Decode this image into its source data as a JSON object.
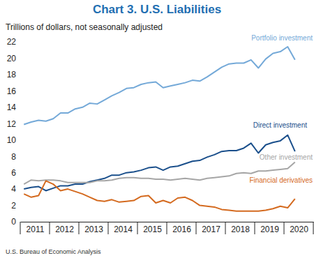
{
  "chart_data": {
    "type": "line",
    "title": "Chart 3. U.S. Liabilities",
    "subtitle": "Trillions of dollars, not seasonally adjusted",
    "source": "U.S. Bureau of Economic Analysis",
    "grid": false,
    "x": [
      2011.125,
      2011.375,
      2011.625,
      2011.875,
      2012.125,
      2012.375,
      2012.625,
      2012.875,
      2013.125,
      2013.375,
      2013.625,
      2013.875,
      2014.125,
      2014.375,
      2014.625,
      2014.875,
      2015.125,
      2015.375,
      2015.625,
      2015.875,
      2016.125,
      2016.375,
      2016.625,
      2016.875,
      2017.125,
      2017.375,
      2017.625,
      2017.875,
      2018.125,
      2018.375,
      2018.625,
      2018.875,
      2019.125,
      2019.375,
      2019.625,
      2019.875,
      2020.125,
      2020.375
    ],
    "xlim": [
      2011,
      2021
    ],
    "xticks": [
      {
        "value": 2011.5,
        "label": "2011"
      },
      {
        "value": 2012.5,
        "label": "2012"
      },
      {
        "value": 2013.5,
        "label": "2013"
      },
      {
        "value": 2014.5,
        "label": "2014"
      },
      {
        "value": 2015.5,
        "label": "2015"
      },
      {
        "value": 2016.5,
        "label": "2016"
      },
      {
        "value": 2017.5,
        "label": "2017"
      },
      {
        "value": 2018.5,
        "label": "2018"
      },
      {
        "value": 2019.5,
        "label": "2019"
      },
      {
        "value": 2020.5,
        "label": "2020"
      }
    ],
    "ylim": [
      0,
      22
    ],
    "yticks": [
      0,
      2,
      4,
      6,
      8,
      10,
      12,
      14,
      16,
      18,
      20,
      22
    ],
    "series": [
      {
        "name": "Portfolio investment",
        "color": "#74a9d8",
        "values": [
          11.9,
          12.2,
          12.4,
          12.3,
          12.6,
          13.3,
          13.3,
          13.8,
          14.0,
          14.5,
          14.4,
          14.9,
          15.4,
          15.8,
          16.3,
          16.4,
          16.8,
          17.0,
          17.1,
          16.4,
          16.6,
          16.8,
          17.0,
          17.3,
          17.2,
          17.7,
          18.3,
          18.9,
          19.3,
          19.4,
          19.4,
          19.8,
          18.8,
          19.9,
          20.6,
          20.8,
          21.4,
          19.8
        ]
      },
      {
        "name": "Direct investment",
        "color": "#1a4f8b",
        "values": [
          4.0,
          4.2,
          4.3,
          3.8,
          4.1,
          4.4,
          4.4,
          4.6,
          4.6,
          4.9,
          5.1,
          5.3,
          5.7,
          5.7,
          6.0,
          6.1,
          6.3,
          6.6,
          6.7,
          6.3,
          6.7,
          6.8,
          7.1,
          7.4,
          7.5,
          7.9,
          8.2,
          8.6,
          8.7,
          8.7,
          9.0,
          9.6,
          8.4,
          9.4,
          9.7,
          9.9,
          10.6,
          8.6
        ]
      },
      {
        "name": "Other investment",
        "color": "#a6a6a6",
        "values": [
          4.6,
          5.1,
          5.0,
          5.1,
          5.1,
          5.0,
          4.8,
          4.8,
          4.8,
          4.8,
          5.0,
          5.0,
          5.1,
          5.3,
          5.4,
          5.4,
          5.3,
          5.3,
          5.2,
          5.2,
          5.1,
          5.2,
          5.3,
          5.2,
          5.1,
          5.3,
          5.4,
          5.5,
          5.6,
          5.9,
          6.0,
          5.9,
          6.2,
          6.2,
          6.3,
          6.4,
          6.5,
          7.3
        ]
      },
      {
        "name": "Financial derivatives",
        "color": "#d46a1f",
        "values": [
          3.4,
          3.0,
          3.2,
          5.0,
          4.6,
          3.8,
          4.0,
          3.7,
          3.4,
          3.0,
          2.6,
          2.5,
          2.7,
          2.4,
          2.5,
          2.6,
          3.1,
          3.2,
          2.3,
          2.6,
          2.3,
          2.9,
          3.0,
          2.6,
          2.0,
          1.9,
          1.8,
          1.5,
          1.4,
          1.3,
          1.3,
          1.3,
          1.3,
          1.4,
          1.6,
          1.9,
          1.7,
          2.8
        ]
      }
    ]
  }
}
